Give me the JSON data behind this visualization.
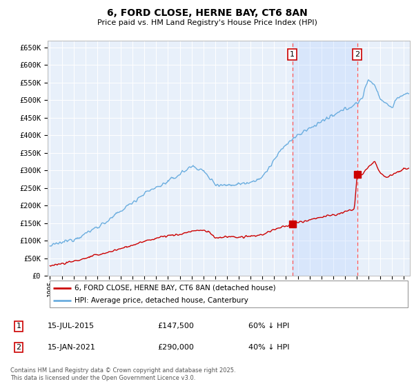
{
  "title": "6, FORD CLOSE, HERNE BAY, CT6 8AN",
  "subtitle": "Price paid vs. HM Land Registry's House Price Index (HPI)",
  "ylabel_ticks": [
    "£0",
    "£50K",
    "£100K",
    "£150K",
    "£200K",
    "£250K",
    "£300K",
    "£350K",
    "£400K",
    "£450K",
    "£500K",
    "£550K",
    "£600K",
    "£650K"
  ],
  "ytick_values": [
    0,
    50000,
    100000,
    150000,
    200000,
    250000,
    300000,
    350000,
    400000,
    450000,
    500000,
    550000,
    600000,
    650000
  ],
  "ylim": [
    0,
    670000
  ],
  "xlim_start": 1994.8,
  "xlim_end": 2025.5,
  "hpi_color": "#6aaddf",
  "hpi_fill_color": "#ddeeff",
  "price_color": "#cc0000",
  "vline_color": "#ff5555",
  "background_color": "#e8f0fa",
  "sale1_x": 2015.54,
  "sale1_y": 147500,
  "sale1_label": "1",
  "sale2_x": 2021.04,
  "sale2_y": 290000,
  "sale2_label": "2",
  "legend_line1": "6, FORD CLOSE, HERNE BAY, CT6 8AN (detached house)",
  "legend_line2": "HPI: Average price, detached house, Canterbury",
  "table_row1": [
    "1",
    "15-JUL-2015",
    "£147,500",
    "60% ↓ HPI"
  ],
  "table_row2": [
    "2",
    "15-JAN-2021",
    "£290,000",
    "40% ↓ HPI"
  ],
  "footnote": "Contains HM Land Registry data © Crown copyright and database right 2025.\nThis data is licensed under the Open Government Licence v3.0.",
  "xtick_years": [
    1995,
    1996,
    1997,
    1998,
    1999,
    2000,
    2001,
    2002,
    2003,
    2004,
    2005,
    2006,
    2007,
    2008,
    2009,
    2010,
    2011,
    2012,
    2013,
    2014,
    2015,
    2016,
    2017,
    2018,
    2019,
    2020,
    2021,
    2022,
    2023,
    2024,
    2025
  ]
}
